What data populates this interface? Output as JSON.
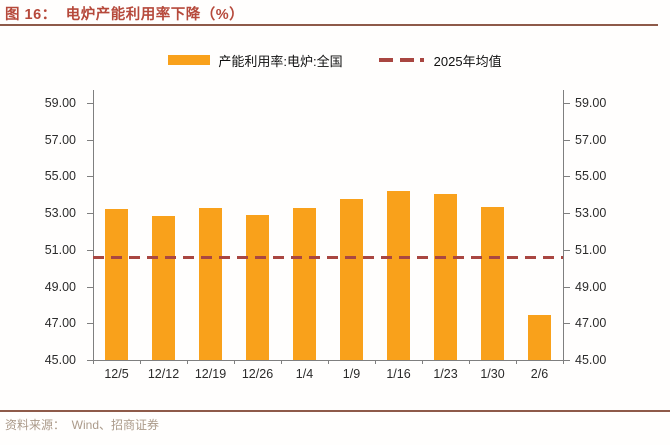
{
  "figure": {
    "title": "图 16：  电炉产能利用率下降（%）",
    "source": "资料来源：  Wind、招商证券"
  },
  "legend": {
    "bar_series_label": "产能利用率:电炉:全国",
    "mean_line_label": "2025年均值"
  },
  "colors": {
    "bar": "#f9a11b",
    "mean_line": "#a94641",
    "title_text": "#b6493b",
    "divider": "#8e5a49",
    "axis": "#7f7f7f",
    "tick_label": "#2b2b2b",
    "source_text": "#ab9a8a"
  },
  "chart_data": {
    "type": "bar",
    "title": "电炉产能利用率下降（%）",
    "categories": [
      "12/5",
      "12/12",
      "12/19",
      "12/26",
      "1/4",
      "1/9",
      "1/16",
      "1/23",
      "1/30",
      "2/6"
    ],
    "series": [
      {
        "name": "产能利用率:电炉:全国",
        "type": "bar",
        "color": "#f9a11b",
        "values": [
          53.2,
          52.85,
          53.25,
          52.9,
          53.3,
          53.75,
          54.2,
          54.05,
          53.35,
          47.45
        ]
      },
      {
        "name": "2025年均值",
        "type": "dashed-horizontal-line",
        "color": "#a94641",
        "value": 50.6
      }
    ],
    "ylabel": "",
    "xlabel": "",
    "ylim": [
      45,
      59.7
    ],
    "y_tick_values": [
      45,
      47,
      49,
      51,
      53,
      55,
      57,
      59
    ],
    "y_tick_labels": [
      "45.00",
      "47.00",
      "49.00",
      "51.00",
      "53.00",
      "55.00",
      "57.00",
      "59.00"
    ],
    "dual_y_axis": true,
    "grid": false,
    "legend_position": "top-center"
  }
}
